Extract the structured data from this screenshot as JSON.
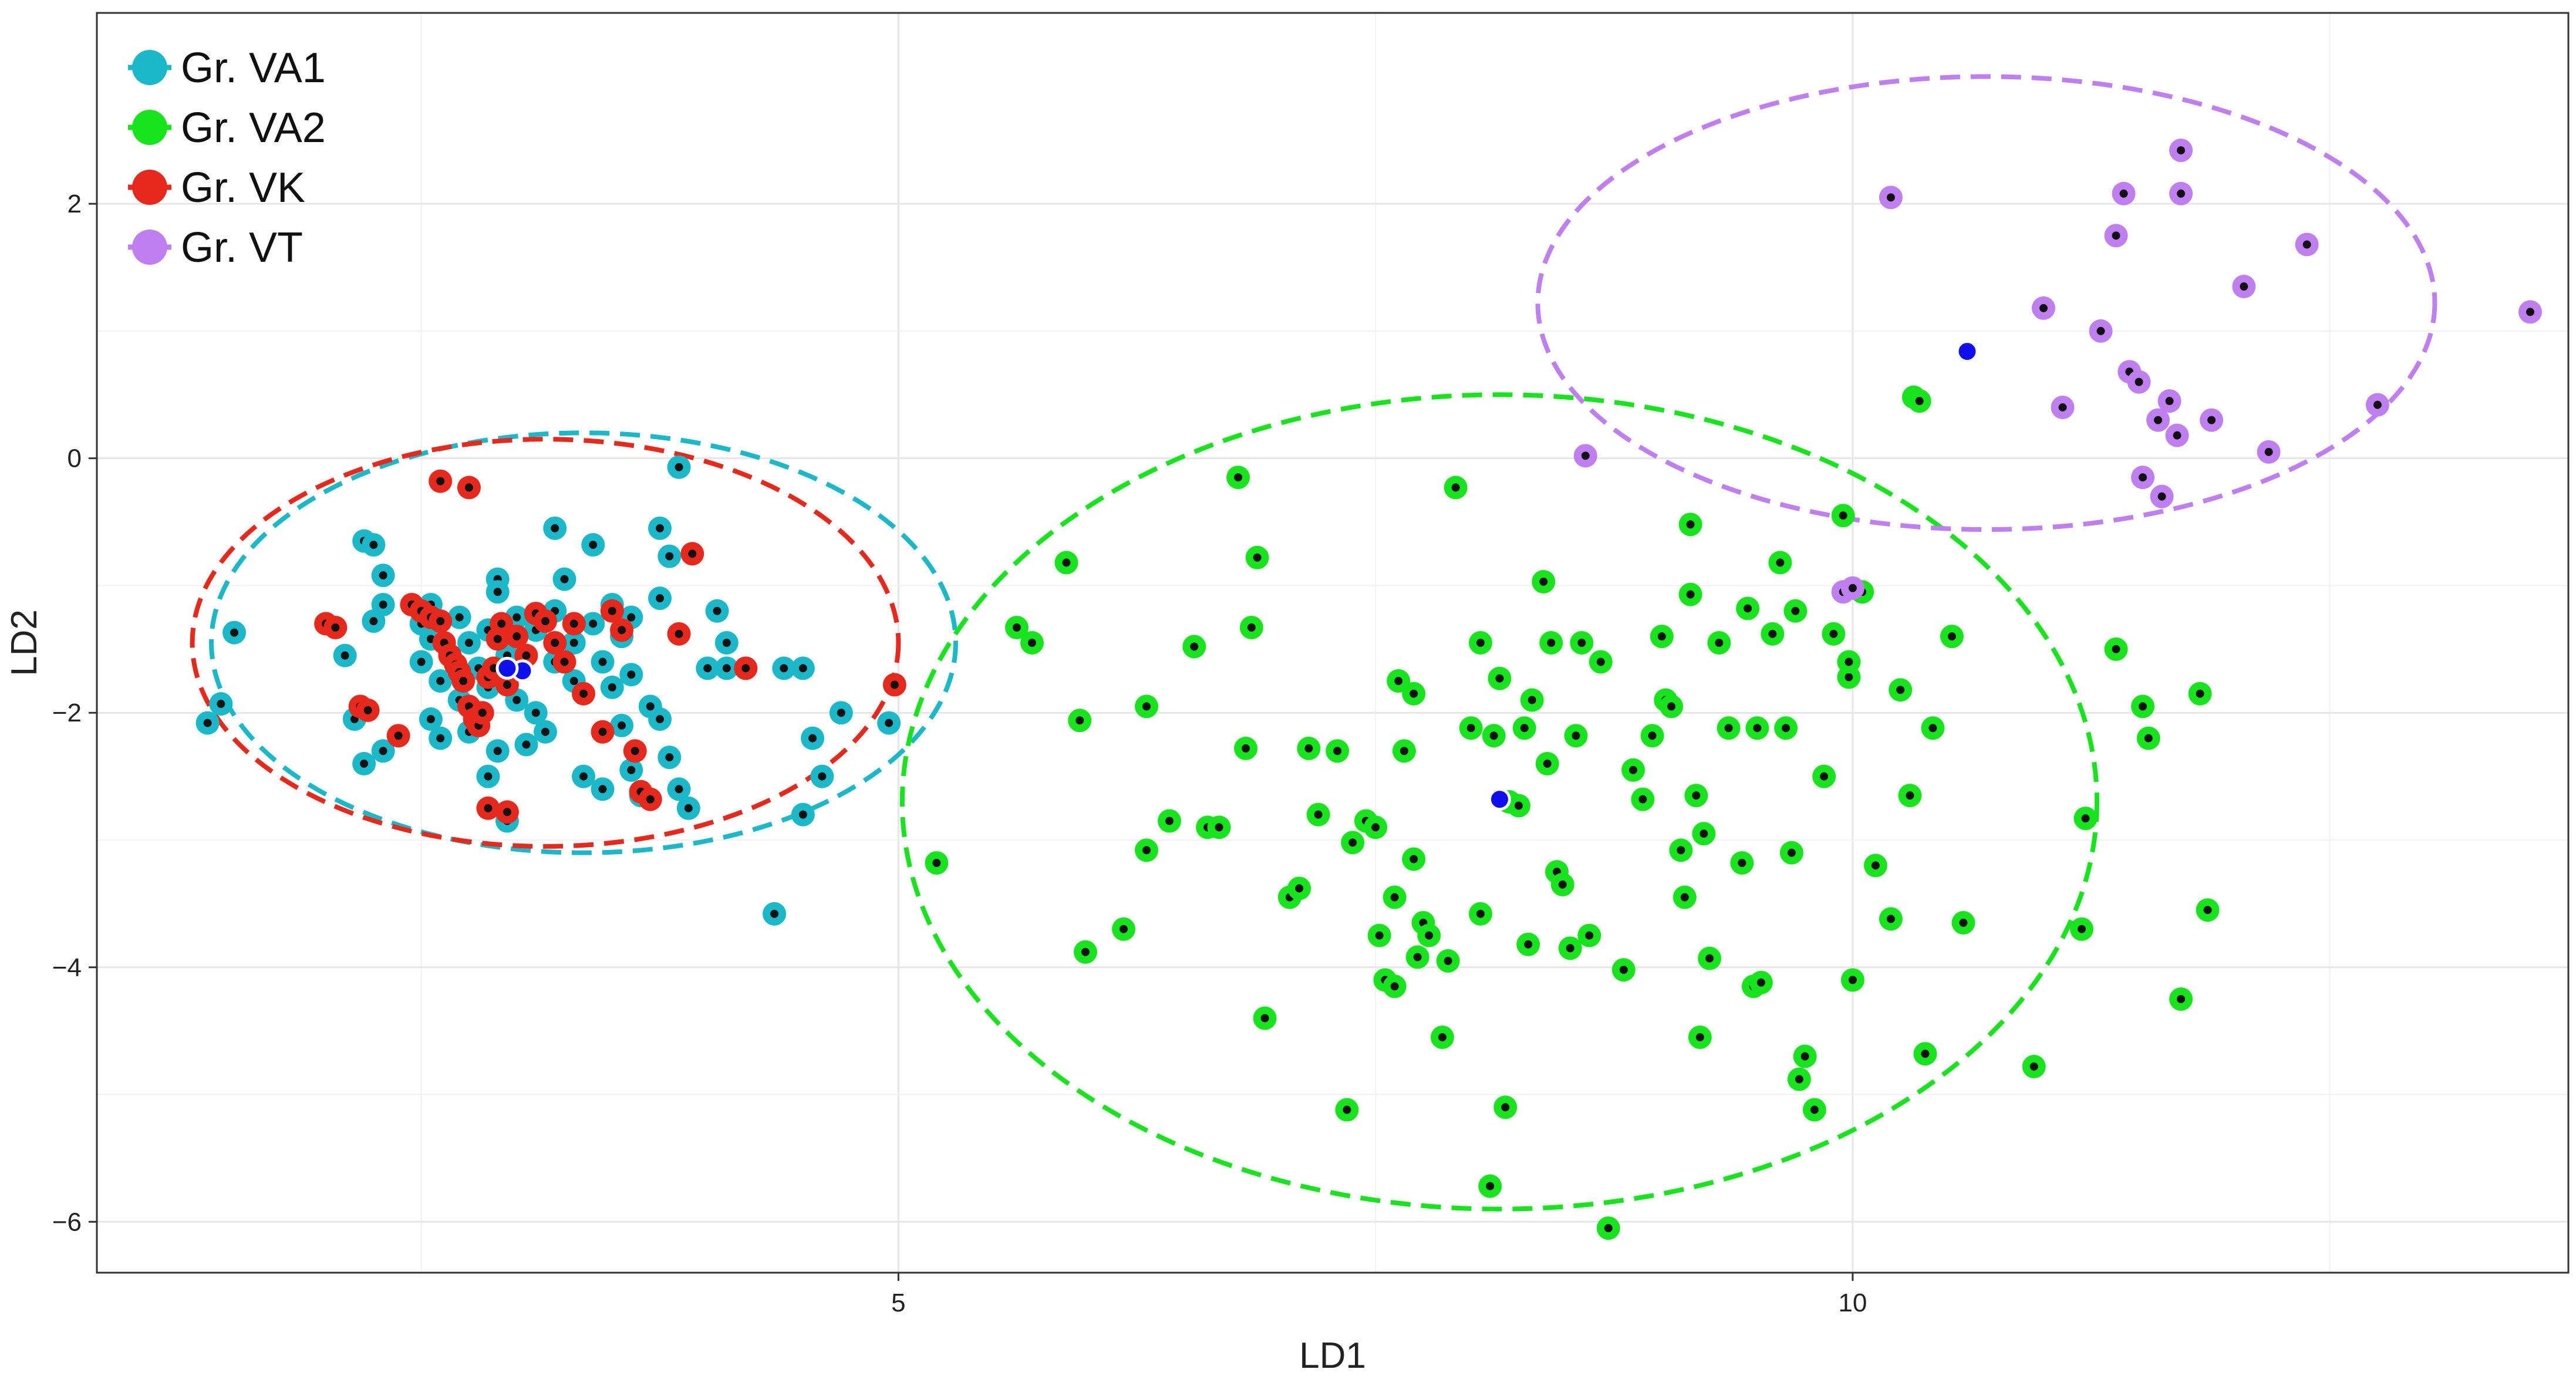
{
  "chart_data": {
    "type": "scatter",
    "xlabel": "LD1",
    "ylabel": "LD2",
    "xlim": [
      0.8,
      13.75
    ],
    "ylim": [
      -6.4,
      3.5
    ],
    "x_ticks": [
      5,
      10
    ],
    "x_tick_labels": [
      "5",
      "10"
    ],
    "x_minor": [
      2.5,
      7.5,
      12.5
    ],
    "y_ticks": [
      2,
      0,
      -2,
      -4,
      -6
    ],
    "y_tick_labels": [
      "2",
      "0",
      "−2",
      "−4",
      "−6"
    ],
    "grid": true,
    "legend": {
      "position": "top-left"
    },
    "series": [
      {
        "name": "Gr. VA1",
        "color": "#1ab8c8",
        "ellipse": {
          "cx": 3.35,
          "cy": -1.45,
          "rx": 1.95,
          "ry": 1.65
        },
        "centroid": {
          "x": 3.03,
          "y": -1.67
        },
        "points": [
          [
            1.52,
            -1.37
          ],
          [
            1.45,
            -1.93
          ],
          [
            1.38,
            -2.08
          ],
          [
            3.85,
            -0.07
          ],
          [
            2.2,
            -0.65
          ],
          [
            2.25,
            -0.68
          ],
          [
            2.55,
            -1.15
          ],
          [
            2.9,
            -0.95
          ],
          [
            3.2,
            -0.55
          ],
          [
            3.25,
            -0.95
          ],
          [
            3.4,
            -0.68
          ],
          [
            3.75,
            -0.55
          ],
          [
            3.8,
            -0.77
          ],
          [
            2.3,
            -0.92
          ],
          [
            2.1,
            -1.55
          ],
          [
            2.3,
            -1.15
          ],
          [
            2.25,
            -1.28
          ],
          [
            2.5,
            -1.3
          ],
          [
            2.55,
            -1.42
          ],
          [
            2.7,
            -1.25
          ],
          [
            2.75,
            -1.45
          ],
          [
            2.85,
            -1.35
          ],
          [
            2.9,
            -1.05
          ],
          [
            3.0,
            -1.25
          ],
          [
            3.1,
            -1.35
          ],
          [
            3.2,
            -1.2
          ],
          [
            3.3,
            -1.45
          ],
          [
            3.4,
            -1.3
          ],
          [
            3.5,
            -1.15
          ],
          [
            3.55,
            -1.4
          ],
          [
            3.6,
            -1.25
          ],
          [
            3.75,
            -1.1
          ],
          [
            2.5,
            -1.6
          ],
          [
            2.6,
            -1.75
          ],
          [
            2.7,
            -1.9
          ],
          [
            2.8,
            -1.65
          ],
          [
            2.85,
            -1.8
          ],
          [
            2.95,
            -1.55
          ],
          [
            3.0,
            -1.9
          ],
          [
            3.1,
            -2.0
          ],
          [
            3.2,
            -1.6
          ],
          [
            3.3,
            -1.75
          ],
          [
            3.45,
            -1.6
          ],
          [
            3.5,
            -1.8
          ],
          [
            3.6,
            -1.7
          ],
          [
            2.15,
            -2.05
          ],
          [
            2.2,
            -2.4
          ],
          [
            2.3,
            -2.3
          ],
          [
            2.55,
            -2.05
          ],
          [
            2.6,
            -2.2
          ],
          [
            2.75,
            -2.15
          ],
          [
            2.85,
            -2.5
          ],
          [
            2.9,
            -2.3
          ],
          [
            3.05,
            -2.25
          ],
          [
            3.15,
            -2.15
          ],
          [
            3.35,
            -2.5
          ],
          [
            3.45,
            -2.6
          ],
          [
            3.55,
            -2.1
          ],
          [
            3.6,
            -2.45
          ],
          [
            3.65,
            -2.65
          ],
          [
            3.75,
            -2.05
          ],
          [
            3.8,
            -2.35
          ],
          [
            3.85,
            -2.6
          ],
          [
            3.9,
            -2.75
          ],
          [
            3.7,
            -1.95
          ],
          [
            2.95,
            -2.85
          ],
          [
            4.0,
            -1.65
          ],
          [
            4.05,
            -1.2
          ],
          [
            4.1,
            -1.45
          ],
          [
            4.1,
            -1.65
          ],
          [
            4.2,
            -1.65
          ],
          [
            4.4,
            -1.65
          ],
          [
            4.5,
            -1.65
          ],
          [
            4.55,
            -2.2
          ],
          [
            4.6,
            -2.5
          ],
          [
            4.7,
            -2.0
          ],
          [
            4.5,
            -2.8
          ],
          [
            4.35,
            -3.58
          ],
          [
            4.95,
            -2.08
          ]
        ]
      },
      {
        "name": "Gr. VA2",
        "color": "#18e41e",
        "ellipse": {
          "cx": 8.15,
          "cy": -2.7,
          "rx": 3.13,
          "ry": 3.2
        },
        "centroid": {
          "x": 8.15,
          "y": -2.68
        },
        "points": [
          [
            5.2,
            -3.18
          ],
          [
            5.62,
            -1.33
          ],
          [
            5.7,
            -1.45
          ],
          [
            5.88,
            -0.82
          ],
          [
            5.95,
            -2.06
          ],
          [
            5.98,
            -3.88
          ],
          [
            6.18,
            -3.7
          ],
          [
            6.3,
            -1.95
          ],
          [
            6.3,
            -3.08
          ],
          [
            6.42,
            -2.85
          ],
          [
            6.55,
            -1.48
          ],
          [
            6.62,
            -2.9
          ],
          [
            6.68,
            -2.9
          ],
          [
            6.78,
            -0.15
          ],
          [
            6.82,
            -2.28
          ],
          [
            6.85,
            -1.33
          ],
          [
            6.88,
            -0.78
          ],
          [
            6.92,
            -4.4
          ],
          [
            7.05,
            -3.45
          ],
          [
            7.1,
            -3.38
          ],
          [
            7.15,
            -2.28
          ],
          [
            7.2,
            -2.8
          ],
          [
            7.3,
            -2.3
          ],
          [
            7.35,
            -5.12
          ],
          [
            7.38,
            -3.02
          ],
          [
            7.45,
            -2.85
          ],
          [
            7.5,
            -2.9
          ],
          [
            7.52,
            -3.75
          ],
          [
            7.55,
            -4.1
          ],
          [
            7.6,
            -4.15
          ],
          [
            7.6,
            -3.45
          ],
          [
            7.62,
            -1.75
          ],
          [
            7.65,
            -2.3
          ],
          [
            7.7,
            -1.85
          ],
          [
            7.7,
            -3.15
          ],
          [
            7.72,
            -3.92
          ],
          [
            7.75,
            -3.65
          ],
          [
            7.78,
            -3.75
          ],
          [
            7.85,
            -4.55
          ],
          [
            7.88,
            -3.95
          ],
          [
            7.92,
            -0.23
          ],
          [
            8.0,
            -2.12
          ],
          [
            8.05,
            -1.45
          ],
          [
            8.05,
            -3.58
          ],
          [
            8.1,
            -5.72
          ],
          [
            8.12,
            -2.18
          ],
          [
            8.15,
            -1.73
          ],
          [
            8.18,
            -5.1
          ],
          [
            8.2,
            -2.7
          ],
          [
            8.25,
            -2.73
          ],
          [
            8.28,
            -2.12
          ],
          [
            8.3,
            -3.82
          ],
          [
            8.32,
            -1.9
          ],
          [
            8.38,
            -0.97
          ],
          [
            8.4,
            -2.4
          ],
          [
            8.42,
            -1.45
          ],
          [
            8.45,
            -3.25
          ],
          [
            8.48,
            -3.35
          ],
          [
            8.52,
            -3.85
          ],
          [
            8.55,
            -2.18
          ],
          [
            8.58,
            -1.45
          ],
          [
            8.62,
            -3.75
          ],
          [
            8.68,
            -1.6
          ],
          [
            8.72,
            -6.05
          ],
          [
            8.8,
            -4.02
          ],
          [
            8.85,
            -2.45
          ],
          [
            8.9,
            -2.68
          ],
          [
            8.95,
            -2.18
          ],
          [
            9.0,
            -1.4
          ],
          [
            9.02,
            -1.9
          ],
          [
            9.05,
            -1.95
          ],
          [
            9.1,
            -3.08
          ],
          [
            9.12,
            -3.45
          ],
          [
            9.15,
            -0.52
          ],
          [
            9.15,
            -1.07
          ],
          [
            9.18,
            -2.65
          ],
          [
            9.2,
            -4.55
          ],
          [
            9.22,
            -2.95
          ],
          [
            9.25,
            -3.93
          ],
          [
            9.3,
            -1.45
          ],
          [
            9.35,
            -2.12
          ],
          [
            9.42,
            -3.18
          ],
          [
            9.45,
            -1.18
          ],
          [
            9.48,
            -4.15
          ],
          [
            9.5,
            -2.12
          ],
          [
            9.52,
            -4.12
          ],
          [
            9.58,
            -1.38
          ],
          [
            9.62,
            -0.82
          ],
          [
            9.65,
            -2.12
          ],
          [
            9.68,
            -3.1
          ],
          [
            9.7,
            -1.2
          ],
          [
            9.72,
            -4.88
          ],
          [
            9.75,
            -4.7
          ],
          [
            9.8,
            -5.12
          ],
          [
            9.85,
            -2.5
          ],
          [
            9.9,
            -1.38
          ],
          [
            9.95,
            -0.45
          ],
          [
            9.98,
            -1.72
          ],
          [
            9.98,
            -1.6
          ],
          [
            10.0,
            -4.1
          ],
          [
            10.05,
            -1.05
          ],
          [
            10.12,
            -3.2
          ],
          [
            10.2,
            -3.62
          ],
          [
            10.25,
            -1.82
          ],
          [
            10.3,
            -2.65
          ],
          [
            10.32,
            0.48
          ],
          [
            10.35,
            0.45
          ],
          [
            10.38,
            -4.68
          ],
          [
            10.42,
            -2.12
          ],
          [
            10.52,
            -1.4
          ],
          [
            10.58,
            -3.65
          ],
          [
            10.95,
            -4.78
          ],
          [
            11.2,
            -3.7
          ],
          [
            11.22,
            -2.83
          ],
          [
            11.38,
            -1.5
          ],
          [
            11.52,
            -1.95
          ],
          [
            11.55,
            -2.2
          ],
          [
            11.72,
            -4.25
          ],
          [
            11.82,
            -1.85
          ],
          [
            11.86,
            -3.55
          ]
        ]
      },
      {
        "name": "Gr. VK",
        "color": "#e7281c",
        "ellipse": {
          "cx": 3.15,
          "cy": -1.45,
          "rx": 1.85,
          "ry": 1.6
        },
        "centroid": {
          "x": 2.95,
          "y": -1.65
        },
        "points": [
          [
            2.0,
            -1.3
          ],
          [
            2.05,
            -1.33
          ],
          [
            2.18,
            -1.95
          ],
          [
            2.22,
            -1.98
          ],
          [
            2.38,
            -2.18
          ],
          [
            2.45,
            -1.15
          ],
          [
            2.5,
            -1.2
          ],
          [
            2.55,
            -1.25
          ],
          [
            2.6,
            -1.28
          ],
          [
            2.62,
            -1.45
          ],
          [
            2.65,
            -1.55
          ],
          [
            2.68,
            -1.62
          ],
          [
            2.7,
            -1.68
          ],
          [
            2.72,
            -1.75
          ],
          [
            2.75,
            -1.95
          ],
          [
            2.78,
            -2.05
          ],
          [
            2.8,
            -2.1
          ],
          [
            2.82,
            -2.0
          ],
          [
            2.85,
            -1.72
          ],
          [
            2.88,
            -1.65
          ],
          [
            2.9,
            -1.42
          ],
          [
            2.92,
            -1.3
          ],
          [
            2.95,
            -1.78
          ],
          [
            3.0,
            -1.4
          ],
          [
            3.05,
            -1.55
          ],
          [
            3.1,
            -1.22
          ],
          [
            3.15,
            -1.28
          ],
          [
            3.2,
            -1.45
          ],
          [
            3.25,
            -1.6
          ],
          [
            3.3,
            -1.3
          ],
          [
            3.35,
            -1.85
          ],
          [
            3.45,
            -2.15
          ],
          [
            3.5,
            -1.2
          ],
          [
            3.55,
            -1.35
          ],
          [
            3.62,
            -2.3
          ],
          [
            3.65,
            -2.62
          ],
          [
            3.7,
            -2.68
          ],
          [
            3.85,
            -1.38
          ],
          [
            3.92,
            -0.75
          ],
          [
            4.2,
            -1.65
          ],
          [
            4.98,
            -1.78
          ],
          [
            2.6,
            -0.18
          ],
          [
            2.75,
            -0.23
          ],
          [
            2.85,
            -2.75
          ],
          [
            2.95,
            -2.78
          ]
        ]
      },
      {
        "name": "Gr. VT",
        "color": "#c07ff0",
        "ellipse": {
          "cx": 10.7,
          "cy": 1.22,
          "rx": 2.35,
          "ry": 1.78
        },
        "centroid": {
          "x": 10.6,
          "y": 0.84
        },
        "points": [
          [
            8.6,
            0.02
          ],
          [
            9.95,
            -1.05
          ],
          [
            10.0,
            -1.02
          ],
          [
            10.2,
            2.05
          ],
          [
            11.0,
            1.18
          ],
          [
            11.1,
            0.4
          ],
          [
            11.3,
            1.0
          ],
          [
            11.38,
            1.75
          ],
          [
            11.42,
            2.08
          ],
          [
            11.45,
            0.68
          ],
          [
            11.5,
            0.6
          ],
          [
            11.52,
            -0.15
          ],
          [
            11.6,
            0.3
          ],
          [
            11.62,
            -0.3
          ],
          [
            11.66,
            0.45
          ],
          [
            11.7,
            0.18
          ],
          [
            11.72,
            2.42
          ],
          [
            11.72,
            2.08
          ],
          [
            11.88,
            0.3
          ],
          [
            12.05,
            1.35
          ],
          [
            12.18,
            0.05
          ],
          [
            12.38,
            1.68
          ],
          [
            12.75,
            0.42
          ],
          [
            13.55,
            1.15
          ]
        ]
      }
    ]
  }
}
